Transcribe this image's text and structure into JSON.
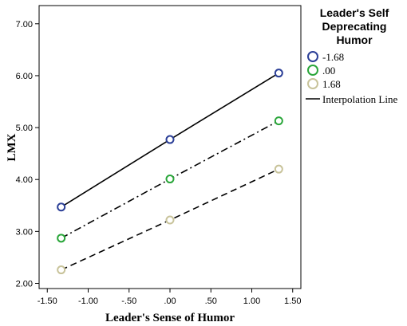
{
  "chart_data": {
    "type": "line",
    "xlabel": "Leader's Sense of Humor",
    "ylabel": "LMX",
    "xlim": [
      -1.6,
      1.6
    ],
    "ylim": [
      1.9,
      7.35
    ],
    "xticks": [
      -1.5,
      -1.0,
      -0.5,
      0.0,
      0.5,
      1.0,
      1.5
    ],
    "xtick_labels": [
      "-1.50",
      "-1.00",
      "-.50",
      ".00",
      ".50",
      "1.00",
      "1.50"
    ],
    "yticks": [
      2,
      3,
      4,
      5,
      6,
      7
    ],
    "ytick_labels": [
      "2.00",
      "3.00",
      "4.00",
      "5.00",
      "6.00",
      "7.00"
    ],
    "x": [
      -1.33,
      0.0,
      1.33
    ],
    "series": [
      {
        "name": "-1.68",
        "values": [
          3.47,
          4.77,
          6.05
        ],
        "marker_color": "#2b3f97",
        "line_style": "solid"
      },
      {
        "name": ".00",
        "values": [
          2.87,
          4.01,
          5.13
        ],
        "marker_color": "#2aa63a",
        "line_style": "dashdot"
      },
      {
        "name": "1.68",
        "values": [
          2.26,
          3.22,
          4.2
        ],
        "marker_color": "#c8c39a",
        "line_style": "dashed"
      }
    ],
    "legend": {
      "title_lines": [
        "Leader's Self",
        "Deprecating",
        "Humor"
      ],
      "interpolation_label": "Interpolation Line",
      "placement": "right"
    },
    "grid": false
  }
}
